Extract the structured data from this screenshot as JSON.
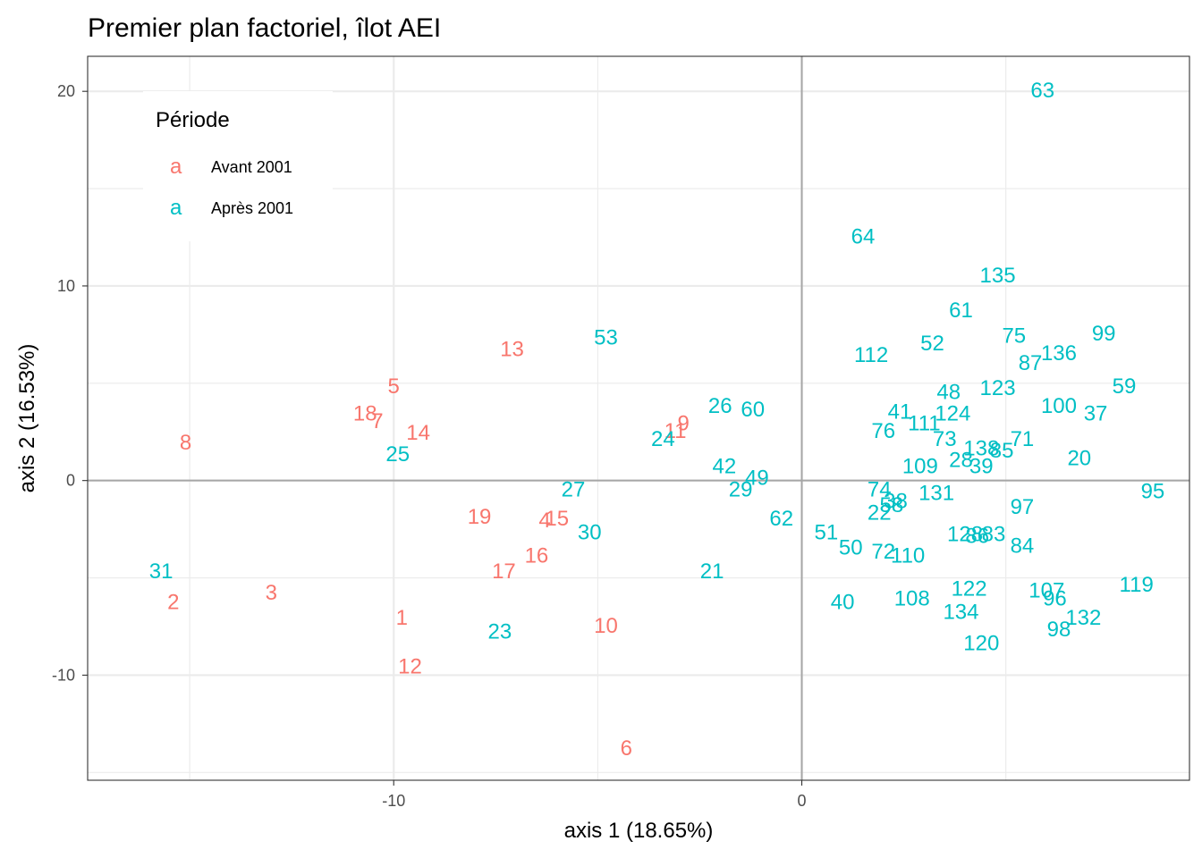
{
  "chart_data": {
    "type": "scatter",
    "title": "Premier plan factoriel, îlot AEI",
    "xlabel": "axis 1 (18.65%)",
    "ylabel": "axis 2 (16.53%)",
    "xlim": [
      -17.5,
      9.5
    ],
    "ylim": [
      -15.4,
      21.8
    ],
    "x_ticks": [
      -10,
      0
    ],
    "y_ticks": [
      -10,
      0,
      10,
      20
    ],
    "x_tick_labels": [
      "-10",
      "0"
    ],
    "y_tick_labels": [
      "-10",
      "0",
      "10",
      "20"
    ],
    "grid": true,
    "reference_lines": {
      "x": 0,
      "y": 0
    },
    "legend": {
      "title": "Période",
      "position": "top-left",
      "key_glyph": "a",
      "entries": [
        {
          "label": "Avant 2001",
          "color": "#F8766D"
        },
        {
          "label": "Après 2001",
          "color": "#00BFC4"
        }
      ]
    },
    "series": [
      {
        "name": "Avant 2001",
        "color": "#F8766D",
        "points": [
          {
            "label": "8",
            "x": -15.1,
            "y": 2.0
          },
          {
            "label": "2",
            "x": -15.4,
            "y": -6.2
          },
          {
            "label": "3",
            "x": -13.0,
            "y": -5.7
          },
          {
            "label": "5",
            "x": -10.0,
            "y": 4.9
          },
          {
            "label": "18",
            "x": -10.7,
            "y": 3.5
          },
          {
            "label": "7",
            "x": -10.4,
            "y": 3.1
          },
          {
            "label": "14",
            "x": -9.4,
            "y": 2.5
          },
          {
            "label": "13",
            "x": -7.1,
            "y": 6.8
          },
          {
            "label": "19",
            "x": -7.9,
            "y": -1.8
          },
          {
            "label": "4",
            "x": -6.3,
            "y": -2.0
          },
          {
            "label": "15",
            "x": -6.0,
            "y": -1.9
          },
          {
            "label": "16",
            "x": -6.5,
            "y": -3.8
          },
          {
            "label": "17",
            "x": -7.3,
            "y": -4.6
          },
          {
            "label": "1",
            "x": -9.8,
            "y": -7.0
          },
          {
            "label": "12",
            "x": -9.6,
            "y": -9.5
          },
          {
            "label": "10",
            "x": -4.8,
            "y": -7.4
          },
          {
            "label": "6",
            "x": -4.3,
            "y": -13.7
          },
          {
            "label": "11",
            "x": -3.1,
            "y": 2.6
          },
          {
            "label": "9",
            "x": -2.9,
            "y": 3.0
          }
        ]
      },
      {
        "name": "Après 2001",
        "color": "#00BFC4",
        "points": [
          {
            "label": "63",
            "x": 5.9,
            "y": 20.1
          },
          {
            "label": "64",
            "x": 1.5,
            "y": 12.6
          },
          {
            "label": "135",
            "x": 4.8,
            "y": 10.6
          },
          {
            "label": "61",
            "x": 3.9,
            "y": 8.8
          },
          {
            "label": "99",
            "x": 7.4,
            "y": 7.6
          },
          {
            "label": "75",
            "x": 5.2,
            "y": 7.5
          },
          {
            "label": "52",
            "x": 3.2,
            "y": 7.1
          },
          {
            "label": "136",
            "x": 6.3,
            "y": 6.6
          },
          {
            "label": "112",
            "x": 1.7,
            "y": 6.5
          },
          {
            "label": "87",
            "x": 5.6,
            "y": 6.1
          },
          {
            "label": "53",
            "x": -4.8,
            "y": 7.4
          },
          {
            "label": "59",
            "x": 7.9,
            "y": 4.9
          },
          {
            "label": "123",
            "x": 4.8,
            "y": 4.8
          },
          {
            "label": "48",
            "x": 3.6,
            "y": 4.6
          },
          {
            "label": "100",
            "x": 6.3,
            "y": 3.9
          },
          {
            "label": "37",
            "x": 7.2,
            "y": 3.5
          },
          {
            "label": "26",
            "x": -2.0,
            "y": 3.9
          },
          {
            "label": "60",
            "x": -1.2,
            "y": 3.7
          },
          {
            "label": "41",
            "x": 2.4,
            "y": 3.6
          },
          {
            "label": "124",
            "x": 3.7,
            "y": 3.5
          },
          {
            "label": "111",
            "x": 3.0,
            "y": 3.0
          },
          {
            "label": "76",
            "x": 2.0,
            "y": 2.6
          },
          {
            "label": "73",
            "x": 3.5,
            "y": 2.2
          },
          {
            "label": "71",
            "x": 5.4,
            "y": 2.2
          },
          {
            "label": "24",
            "x": -3.4,
            "y": 2.2
          },
          {
            "label": "138",
            "x": 4.4,
            "y": 1.7
          },
          {
            "label": "85",
            "x": 4.9,
            "y": 1.6
          },
          {
            "label": "20",
            "x": 6.8,
            "y": 1.2
          },
          {
            "label": "28",
            "x": 3.9,
            "y": 1.1
          },
          {
            "label": "39",
            "x": 4.4,
            "y": 0.8
          },
          {
            "label": "109",
            "x": 2.9,
            "y": 0.8
          },
          {
            "label": "25",
            "x": -9.9,
            "y": 1.4
          },
          {
            "label": "42",
            "x": -1.9,
            "y": 0.8
          },
          {
            "label": "49",
            "x": -1.1,
            "y": 0.2
          },
          {
            "label": "29",
            "x": -1.5,
            "y": -0.4
          },
          {
            "label": "27",
            "x": -5.6,
            "y": -0.4
          },
          {
            "label": "95",
            "x": 8.6,
            "y": -0.5
          },
          {
            "label": "74",
            "x": 1.9,
            "y": -0.4
          },
          {
            "label": "131",
            "x": 3.3,
            "y": -0.6
          },
          {
            "label": "38",
            "x": 2.3,
            "y": -1.0
          },
          {
            "label": "58",
            "x": 2.2,
            "y": -1.2
          },
          {
            "label": "22",
            "x": 1.9,
            "y": -1.6
          },
          {
            "label": "97",
            "x": 5.4,
            "y": -1.3
          },
          {
            "label": "62",
            "x": -0.5,
            "y": -1.9
          },
          {
            "label": "30",
            "x": -5.2,
            "y": -2.6
          },
          {
            "label": "51",
            "x": 0.6,
            "y": -2.6
          },
          {
            "label": "128",
            "x": 4.0,
            "y": -2.7
          },
          {
            "label": "86",
            "x": 4.3,
            "y": -2.8
          },
          {
            "label": "83",
            "x": 4.7,
            "y": -2.7
          },
          {
            "label": "84",
            "x": 5.4,
            "y": -3.3
          },
          {
            "label": "50",
            "x": 1.2,
            "y": -3.4
          },
          {
            "label": "72",
            "x": 2.0,
            "y": -3.6
          },
          {
            "label": "110",
            "x": 2.6,
            "y": -3.8
          },
          {
            "label": "31",
            "x": -15.7,
            "y": -4.6
          },
          {
            "label": "21",
            "x": -2.2,
            "y": -4.6
          },
          {
            "label": "119",
            "x": 8.2,
            "y": -5.3
          },
          {
            "label": "122",
            "x": 4.1,
            "y": -5.5
          },
          {
            "label": "107",
            "x": 6.0,
            "y": -5.6
          },
          {
            "label": "96",
            "x": 6.2,
            "y": -6.0
          },
          {
            "label": "108",
            "x": 2.7,
            "y": -6.0
          },
          {
            "label": "40",
            "x": 1.0,
            "y": -6.2
          },
          {
            "label": "134",
            "x": 3.9,
            "y": -6.7
          },
          {
            "label": "132",
            "x": 6.9,
            "y": -7.0
          },
          {
            "label": "98",
            "x": 6.3,
            "y": -7.6
          },
          {
            "label": "23",
            "x": -7.4,
            "y": -7.7
          },
          {
            "label": "120",
            "x": 4.4,
            "y": -8.3
          }
        ]
      }
    ]
  }
}
